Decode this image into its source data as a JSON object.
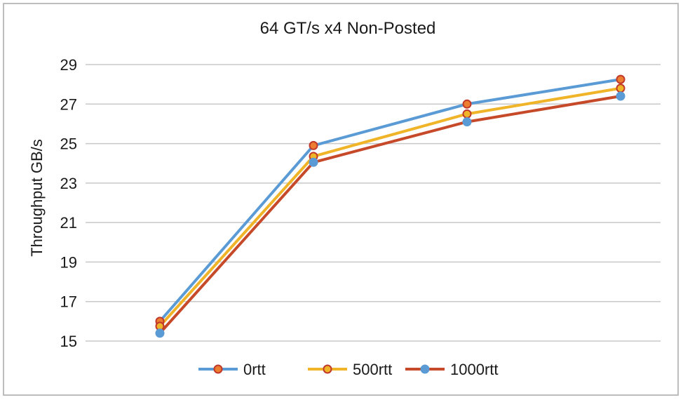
{
  "chart_data": {
    "type": "line",
    "title": "64 GT/s x4 Non-Posted",
    "xlabel": "",
    "ylabel": "Throughput GB/s",
    "ylim": [
      15,
      29
    ],
    "yticks": [
      15,
      17,
      19,
      21,
      23,
      25,
      27,
      29
    ],
    "categories": [
      "",
      "",
      "",
      ""
    ],
    "grid": true,
    "legend": "bottom",
    "series": [
      {
        "name": "0rtt",
        "color": "#5b9bd5",
        "marker_fill": "#ed7d31",
        "marker_edge": "#c0392b",
        "values": [
          16.0,
          24.9,
          27.0,
          28.25
        ]
      },
      {
        "name": "500rtt",
        "color": "#f0b429",
        "marker_fill": "#f0b429",
        "marker_edge": "#c0392b",
        "values": [
          15.75,
          24.35,
          26.5,
          27.8
        ]
      },
      {
        "name": "1000rtt",
        "color": "#c64a2a",
        "marker_fill": "#5b9bd5",
        "marker_edge": "#5b9bd5",
        "values": [
          15.4,
          24.05,
          26.1,
          27.4
        ]
      }
    ]
  }
}
